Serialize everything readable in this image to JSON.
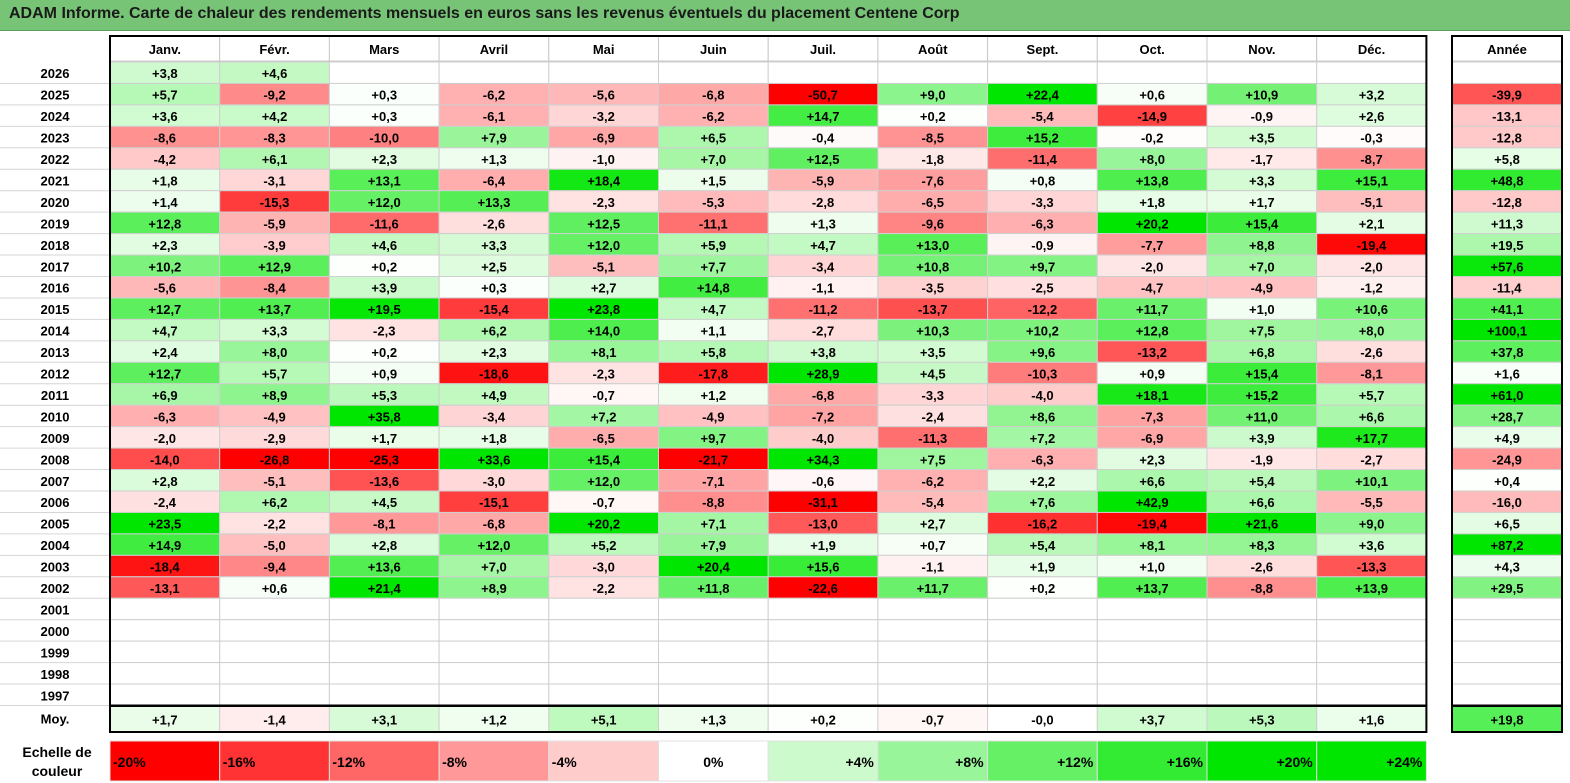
{
  "title": "ADAM Informe. Carte de chaleur des rendements mensuels en euros sans les revenus éventuels du placement Centene Corp",
  "colors": {
    "title_bg": "#77c477",
    "red_max": "#ff0000",
    "green_max": "#00e600",
    "neutral": "#ffffff",
    "grid": "#d0d0d0",
    "border": "#000000"
  },
  "chart_data": {
    "type": "heatmap",
    "columns": [
      "Janv.",
      "Févr.",
      "Mars",
      "Avril",
      "Mai",
      "Juin",
      "Juil.",
      "Août",
      "Sept.",
      "Oct.",
      "Nov.",
      "Déc."
    ],
    "year_header": "Année",
    "rows": [
      {
        "year": "2026",
        "months": [
          "+3,8",
          "+4,6",
          "",
          "",
          "",
          "",
          "",
          "",
          "",
          "",
          "",
          ""
        ],
        "annual": ""
      },
      {
        "year": "2025",
        "months": [
          "+5,7",
          "-9,2",
          "+0,3",
          "-6,2",
          "-5,6",
          "-6,8",
          "-50,7",
          "+9,0",
          "+22,4",
          "+0,6",
          "+10,9",
          "+3,2"
        ],
        "annual": "-39,9"
      },
      {
        "year": "2024",
        "months": [
          "+3,6",
          "+4,2",
          "+0,3",
          "-6,1",
          "-3,2",
          "-6,2",
          "+14,7",
          "+0,2",
          "-5,4",
          "-14,9",
          "-0,9",
          "+2,6"
        ],
        "annual": "-13,1"
      },
      {
        "year": "2023",
        "months": [
          "-8,6",
          "-8,3",
          "-10,0",
          "+7,9",
          "-6,9",
          "+6,5",
          "-0,4",
          "-8,5",
          "+15,2",
          "-0,2",
          "+3,5",
          "-0,3"
        ],
        "annual": "-12,8"
      },
      {
        "year": "2022",
        "months": [
          "-4,2",
          "+6,1",
          "+2,3",
          "+1,3",
          "-1,0",
          "+7,0",
          "+12,5",
          "-1,8",
          "-11,4",
          "+8,0",
          "-1,7",
          "-8,7"
        ],
        "annual": "+5,8"
      },
      {
        "year": "2021",
        "months": [
          "+1,8",
          "-3,1",
          "+13,1",
          "-6,4",
          "+18,4",
          "+1,5",
          "-5,9",
          "-7,6",
          "+0,8",
          "+13,8",
          "+3,3",
          "+15,1"
        ],
        "annual": "+48,8"
      },
      {
        "year": "2020",
        "months": [
          "+1,4",
          "-15,3",
          "+12,0",
          "+13,3",
          "-2,3",
          "-5,3",
          "-2,8",
          "-6,5",
          "-3,3",
          "+1,8",
          "+1,7",
          "-5,1"
        ],
        "annual": "-12,8"
      },
      {
        "year": "2019",
        "months": [
          "+12,8",
          "-5,9",
          "-11,6",
          "-2,6",
          "+12,5",
          "-11,1",
          "+1,3",
          "-9,6",
          "-6,3",
          "+20,2",
          "+15,4",
          "+2,1"
        ],
        "annual": "+11,3"
      },
      {
        "year": "2018",
        "months": [
          "+2,3",
          "-3,9",
          "+4,6",
          "+3,3",
          "+12,0",
          "+5,9",
          "+4,7",
          "+13,0",
          "-0,9",
          "-7,7",
          "+8,8",
          "-19,4"
        ],
        "annual": "+19,5"
      },
      {
        "year": "2017",
        "months": [
          "+10,2",
          "+12,9",
          "+0,2",
          "+2,5",
          "-5,1",
          "+7,7",
          "-3,4",
          "+10,8",
          "+9,7",
          "-2,0",
          "+7,0",
          "-2,0"
        ],
        "annual": "+57,6"
      },
      {
        "year": "2016",
        "months": [
          "-5,6",
          "-8,4",
          "+3,9",
          "+0,3",
          "+2,7",
          "+14,8",
          "-1,1",
          "-3,5",
          "-2,5",
          "-4,7",
          "-4,9",
          "-1,2"
        ],
        "annual": "-11,4"
      },
      {
        "year": "2015",
        "months": [
          "+12,7",
          "+13,7",
          "+19,5",
          "-15,4",
          "+23,8",
          "+4,7",
          "-11,2",
          "-13,7",
          "-12,2",
          "+11,7",
          "+1,0",
          "+10,6"
        ],
        "annual": "+41,1"
      },
      {
        "year": "2014",
        "months": [
          "+4,7",
          "+3,3",
          "-2,3",
          "+6,2",
          "+14,0",
          "+1,1",
          "-2,7",
          "+10,3",
          "+10,2",
          "+12,8",
          "+7,5",
          "+8,0"
        ],
        "annual": "+100,1"
      },
      {
        "year": "2013",
        "months": [
          "+2,4",
          "+8,0",
          "+0,2",
          "+2,3",
          "+8,1",
          "+5,8",
          "+3,8",
          "+3,5",
          "+9,6",
          "-13,2",
          "+6,8",
          "-2,6"
        ],
        "annual": "+37,8"
      },
      {
        "year": "2012",
        "months": [
          "+12,7",
          "+5,7",
          "+0,9",
          "-18,6",
          "-2,3",
          "-17,8",
          "+28,9",
          "+4,5",
          "-10,3",
          "+0,9",
          "+15,4",
          "-8,1"
        ],
        "annual": "+1,6"
      },
      {
        "year": "2011",
        "months": [
          "+6,9",
          "+8,9",
          "+5,3",
          "+4,9",
          "-0,7",
          "+1,2",
          "-6,8",
          "-3,3",
          "-4,0",
          "+18,1",
          "+15,2",
          "+5,7"
        ],
        "annual": "+61,0"
      },
      {
        "year": "2010",
        "months": [
          "-6,3",
          "-4,9",
          "+35,8",
          "-3,4",
          "+7,2",
          "-4,9",
          "-7,2",
          "-2,4",
          "+8,6",
          "-7,3",
          "+11,0",
          "+6,6"
        ],
        "annual": "+28,7"
      },
      {
        "year": "2009",
        "months": [
          "-2,0",
          "-2,9",
          "+1,7",
          "+1,8",
          "-6,5",
          "+9,7",
          "-4,0",
          "-11,3",
          "+7,2",
          "-6,9",
          "+3,9",
          "+17,7"
        ],
        "annual": "+4,9"
      },
      {
        "year": "2008",
        "months": [
          "-14,0",
          "-26,8",
          "-25,3",
          "+33,6",
          "+15,4",
          "-21,7",
          "+34,3",
          "+7,5",
          "-6,3",
          "+2,3",
          "-1,9",
          "-2,7"
        ],
        "annual": "-24,9"
      },
      {
        "year": "2007",
        "months": [
          "+2,8",
          "-5,1",
          "-13,6",
          "-3,0",
          "+12,0",
          "-7,1",
          "-0,6",
          "-6,2",
          "+2,2",
          "+6,6",
          "+5,4",
          "+10,1"
        ],
        "annual": "+0,4"
      },
      {
        "year": "2006",
        "months": [
          "-2,4",
          "+6,2",
          "+4,5",
          "-15,1",
          "-0,7",
          "-8,8",
          "-31,1",
          "-5,4",
          "+7,6",
          "+42,9",
          "+6,6",
          "-5,5"
        ],
        "annual": "-16,0"
      },
      {
        "year": "2005",
        "months": [
          "+23,5",
          "-2,2",
          "-8,1",
          "-6,8",
          "+20,2",
          "+7,1",
          "-13,0",
          "+2,7",
          "-16,2",
          "-19,4",
          "+21,6",
          "+9,0"
        ],
        "annual": "+6,5"
      },
      {
        "year": "2004",
        "months": [
          "+14,9",
          "-5,0",
          "+2,8",
          "+12,0",
          "+5,2",
          "+7,9",
          "+1,9",
          "+0,7",
          "+5,4",
          "+8,1",
          "+8,3",
          "+3,6"
        ],
        "annual": "+87,2"
      },
      {
        "year": "2003",
        "months": [
          "-18,4",
          "-9,4",
          "+13,6",
          "+7,0",
          "-3,0",
          "+20,4",
          "+15,6",
          "-1,1",
          "+1,9",
          "+1,0",
          "-2,6",
          "-13,3"
        ],
        "annual": "+4,3"
      },
      {
        "year": "2002",
        "months": [
          "-13,1",
          "+0,6",
          "+21,4",
          "+8,9",
          "-2,2",
          "+11,8",
          "-22,6",
          "+11,7",
          "+0,2",
          "+13,7",
          "-8,8",
          "+13,9"
        ],
        "annual": "+29,5"
      },
      {
        "year": "2001",
        "months": [
          "",
          "",
          "",
          "",
          "",
          "",
          "",
          "",
          "",
          "",
          "",
          ""
        ],
        "annual": ""
      },
      {
        "year": "2000",
        "months": [
          "",
          "",
          "",
          "",
          "",
          "",
          "",
          "",
          "",
          "",
          "",
          ""
        ],
        "annual": ""
      },
      {
        "year": "1999",
        "months": [
          "",
          "",
          "",
          "",
          "",
          "",
          "",
          "",
          "",
          "",
          "",
          ""
        ],
        "annual": ""
      },
      {
        "year": "1998",
        "months": [
          "",
          "",
          "",
          "",
          "",
          "",
          "",
          "",
          "",
          "",
          "",
          ""
        ],
        "annual": ""
      },
      {
        "year": "1997",
        "months": [
          "",
          "",
          "",
          "",
          "",
          "",
          "",
          "",
          "",
          "",
          "",
          ""
        ],
        "annual": ""
      }
    ],
    "average": {
      "label": "Moy.",
      "months": [
        "+1,7",
        "-1,4",
        "+3,1",
        "+1,2",
        "+5,1",
        "+1,3",
        "+0,2",
        "-0,7",
        "-0,0",
        "+3,7",
        "+5,3",
        "+1,6"
      ],
      "annual": "+19,8"
    },
    "scale": {
      "label_line1": "Echelle de",
      "label_line2": "couleur",
      "steps": [
        "-20%",
        "-16%",
        "-12%",
        "-8%",
        "-4%",
        "0%",
        "+4%",
        "+8%",
        "+12%",
        "+16%",
        "+20%",
        "+24%"
      ],
      "step_values": [
        -20,
        -16,
        -12,
        -8,
        -4,
        0,
        4,
        8,
        12,
        16,
        20,
        24
      ]
    }
  }
}
